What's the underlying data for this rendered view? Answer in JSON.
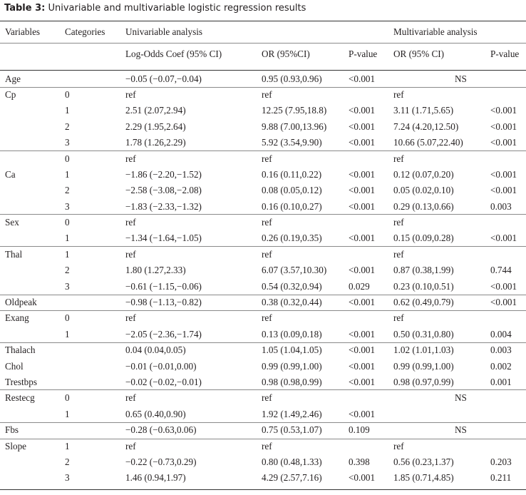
{
  "caption": {
    "label": "Table 3:",
    "text": "Univariable and multivariable logistic regression results"
  },
  "headers": {
    "variables": "Variables",
    "categories": "Categories",
    "univariable": "Univariable analysis",
    "multivariable": "Multivariable analysis",
    "log_odds": "Log-Odds Coef (95% CI)",
    "or_uni": "OR (95%CI)",
    "p_uni": "P-value",
    "or_multi": "OR (95% CI)",
    "p_multi": "P-value"
  },
  "rows": [
    {
      "variable": "Age",
      "category": "",
      "coef": "−0.05 (−0.07,−0.04)",
      "or_uni": "0.95 (0.93,0.96)",
      "p_uni": "<0.001",
      "or_multi": "",
      "p_multi": "",
      "ns": "NS"
    },
    {
      "variable": "Cp",
      "category": "0",
      "coef": "ref",
      "or_uni": "ref",
      "p_uni": "",
      "or_multi": "ref",
      "p_multi": ""
    },
    {
      "variable": "",
      "category": "1",
      "coef": "2.51 (2.07,2.94)",
      "or_uni": "12.25 (7.95,18.8)",
      "p_uni": "<0.001",
      "or_multi": "3.11 (1.71,5.65)",
      "p_multi": "<0.001"
    },
    {
      "variable": "",
      "category": "2",
      "coef": "2.29 (1.95,2.64)",
      "or_uni": "9.88 (7.00,13.96)",
      "p_uni": "<0.001",
      "or_multi": "7.24 (4.20,12.50)",
      "p_multi": "<0.001"
    },
    {
      "variable": "",
      "category": "3",
      "coef": "1.78 (1.26,2.29)",
      "or_uni": "5.92 (3.54,9.90)",
      "p_uni": "<0.001",
      "or_multi": "10.66 (5.07,22.40)",
      "p_multi": "<0.001"
    },
    {
      "variable": "",
      "category": "0",
      "coef": "ref",
      "or_uni": "ref",
      "p_uni": "",
      "or_multi": "ref",
      "p_multi": ""
    },
    {
      "variable": "Ca",
      "category": "1",
      "coef": "−1.86 (−2.20,−1.52)",
      "or_uni": "0.16 (0.11,0.22)",
      "p_uni": "<0.001",
      "or_multi": "0.12 (0.07,0.20)",
      "p_multi": "<0.001"
    },
    {
      "variable": "",
      "category": "2",
      "coef": "−2.58 (−3.08,−2.08)",
      "or_uni": "0.08 (0.05,0.12)",
      "p_uni": "<0.001",
      "or_multi": "0.05 (0.02,0.10)",
      "p_multi": "<0.001"
    },
    {
      "variable": "",
      "category": "3",
      "coef": "−1.83 (−2.33,−1.32)",
      "or_uni": "0.16 (0.10,0.27)",
      "p_uni": "<0.001",
      "or_multi": "0.29 (0.13,0.66)",
      "p_multi": "0.003"
    },
    {
      "variable": "Sex",
      "category": "0",
      "coef": "ref",
      "or_uni": "ref",
      "p_uni": "",
      "or_multi": "ref",
      "p_multi": ""
    },
    {
      "variable": "",
      "category": "1",
      "coef": "−1.34 (−1.64,−1.05)",
      "or_uni": "0.26 (0.19,0.35)",
      "p_uni": "<0.001",
      "or_multi": "0.15 (0.09,0.28)",
      "p_multi": "<0.001"
    },
    {
      "variable": "Thal",
      "category": "1",
      "coef": "ref",
      "or_uni": "ref",
      "p_uni": "",
      "or_multi": "ref",
      "p_multi": ""
    },
    {
      "variable": "",
      "category": "2",
      "coef": "1.80 (1.27,2.33)",
      "or_uni": "6.07 (3.57,10.30)",
      "p_uni": "<0.001",
      "or_multi": "0.87 (0.38,1.99)",
      "p_multi": "0.744"
    },
    {
      "variable": "",
      "category": "3",
      "coef": "−0.61 (−1.15,−0.06)",
      "or_uni": "0.54 (0.32,0.94)",
      "p_uni": "0.029",
      "or_multi": "0.23 (0.10,0.51)",
      "p_multi": "<0.001"
    },
    {
      "variable": "Oldpeak",
      "category": "",
      "coef": "−0.98 (−1.13,−0.82)",
      "or_uni": "0.38 (0.32,0.44)",
      "p_uni": "<0.001",
      "or_multi": "0.62 (0.49,0.79)",
      "p_multi": "<0.001"
    },
    {
      "variable": "Exang",
      "category": "0",
      "coef": "ref",
      "or_uni": "ref",
      "p_uni": "",
      "or_multi": "ref",
      "p_multi": ""
    },
    {
      "variable": "",
      "category": "1",
      "coef": "−2.05 (−2.36,−1.74)",
      "or_uni": "0.13 (0.09,0.18)",
      "p_uni": "<0.001",
      "or_multi": "0.50 (0.31,0.80)",
      "p_multi": "0.004"
    },
    {
      "variable": "Thalach",
      "category": "",
      "coef": "0.04 (0.04,0.05)",
      "or_uni": "1.05 (1.04,1.05)",
      "p_uni": "<0.001",
      "or_multi": "1.02 (1.01,1.03)",
      "p_multi": "0.003"
    },
    {
      "variable": "Chol",
      "category": "",
      "coef": "−0.01 (−0.01,0.00)",
      "or_uni": "0.99 (0.99,1.00)",
      "p_uni": "<0.001",
      "or_multi": "0.99 (0.99,1.00)",
      "p_multi": "0.002"
    },
    {
      "variable": "Trestbps",
      "category": "",
      "coef": "−0.02 (−0.02,−0.01)",
      "or_uni": "0.98 (0.98,0.99)",
      "p_uni": "<0.001",
      "or_multi": "0.98 (0.97,0.99)",
      "p_multi": "0.001"
    },
    {
      "variable": "Restecg",
      "category": "0",
      "coef": "ref",
      "or_uni": "ref",
      "p_uni": "",
      "or_multi": "",
      "p_multi": "",
      "ns": "NS"
    },
    {
      "variable": "",
      "category": "1",
      "coef": "0.65 (0.40,0.90)",
      "or_uni": "1.92 (1.49,2.46)",
      "p_uni": "<0.001",
      "or_multi": "",
      "p_multi": ""
    },
    {
      "variable": "Fbs",
      "category": "",
      "coef": "−0.28 (−0.63,0.06)",
      "or_uni": "0.75 (0.53,1.07)",
      "p_uni": "0.109",
      "or_multi": "",
      "p_multi": "",
      "ns": "NS"
    },
    {
      "variable": "Slope",
      "category": "1",
      "coef": "ref",
      "or_uni": "ref",
      "p_uni": "",
      "or_multi": "ref",
      "p_multi": ""
    },
    {
      "variable": "",
      "category": "2",
      "coef": "−0.22 (−0.73,0.29)",
      "or_uni": "0.80 (0.48,1.33)",
      "p_uni": "0.398",
      "or_multi": "0.56 (0.23,1.37)",
      "p_multi": "0.203"
    },
    {
      "variable": "",
      "category": "3",
      "coef": "1.46 (0.94,1.97)",
      "or_uni": "4.29 (2.57,7.16)",
      "p_uni": "<0.001",
      "or_multi": "1.85 (0.71,4.85)",
      "p_multi": "0.211"
    }
  ]
}
